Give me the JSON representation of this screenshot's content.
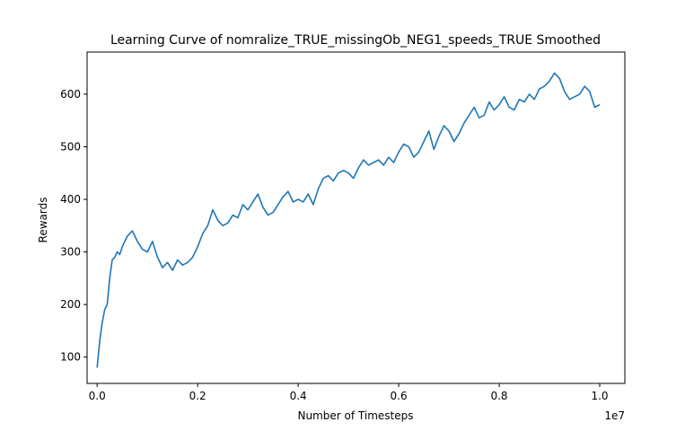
{
  "chart_data": {
    "type": "line",
    "title": "Learning Curve of nomralize_TRUE_missingOb_NEG1_speeds_TRUE Smoothed",
    "xlabel": "Number of Timesteps",
    "ylabel": "Rewards",
    "x_offset_label": "1e7",
    "xlim": [
      -0.02,
      1.05
    ],
    "ylim": [
      50,
      680
    ],
    "xticks": [
      0.0,
      0.2,
      0.4,
      0.6,
      0.8,
      1.0
    ],
    "xtick_labels": [
      "0.0",
      "0.2",
      "0.4",
      "0.6",
      "0.8",
      "1.0"
    ],
    "yticks": [
      100,
      200,
      300,
      400,
      500,
      600
    ],
    "ytick_labels": [
      "100",
      "200",
      "300",
      "400",
      "500",
      "600"
    ],
    "grid": false,
    "legend": false,
    "series": [
      {
        "color": "#1f77b4",
        "x": [
          0.0,
          0.005,
          0.01,
          0.015,
          0.02,
          0.025,
          0.03,
          0.035,
          0.04,
          0.045,
          0.05,
          0.06,
          0.07,
          0.08,
          0.09,
          0.1,
          0.11,
          0.12,
          0.13,
          0.14,
          0.15,
          0.16,
          0.17,
          0.18,
          0.19,
          0.2,
          0.21,
          0.22,
          0.23,
          0.24,
          0.25,
          0.26,
          0.27,
          0.28,
          0.29,
          0.3,
          0.31,
          0.32,
          0.33,
          0.34,
          0.35,
          0.36,
          0.37,
          0.38,
          0.39,
          0.4,
          0.41,
          0.42,
          0.43,
          0.44,
          0.45,
          0.46,
          0.47,
          0.48,
          0.49,
          0.5,
          0.51,
          0.52,
          0.53,
          0.54,
          0.55,
          0.56,
          0.57,
          0.58,
          0.59,
          0.6,
          0.61,
          0.62,
          0.63,
          0.64,
          0.65,
          0.66,
          0.67,
          0.68,
          0.69,
          0.7,
          0.71,
          0.72,
          0.73,
          0.74,
          0.75,
          0.76,
          0.77,
          0.78,
          0.79,
          0.8,
          0.81,
          0.82,
          0.83,
          0.84,
          0.85,
          0.86,
          0.87,
          0.88,
          0.89,
          0.9,
          0.91,
          0.92,
          0.93,
          0.94,
          0.95,
          0.96,
          0.97,
          0.98,
          0.99,
          1.0
        ],
        "y": [
          80,
          130,
          165,
          190,
          200,
          250,
          285,
          290,
          300,
          295,
          310,
          330,
          340,
          320,
          305,
          300,
          320,
          290,
          270,
          280,
          265,
          285,
          275,
          280,
          290,
          310,
          335,
          350,
          380,
          360,
          350,
          355,
          370,
          365,
          390,
          380,
          395,
          410,
          385,
          370,
          375,
          390,
          405,
          415,
          395,
          400,
          395,
          410,
          390,
          420,
          440,
          445,
          435,
          450,
          455,
          450,
          440,
          460,
          475,
          465,
          470,
          475,
          465,
          480,
          470,
          490,
          505,
          500,
          480,
          490,
          510,
          530,
          495,
          520,
          540,
          530,
          510,
          525,
          545,
          560,
          575,
          555,
          560,
          585,
          570,
          580,
          595,
          575,
          570,
          590,
          585,
          600,
          590,
          610,
          615,
          625,
          640,
          630,
          605,
          590,
          595,
          600,
          615,
          605,
          575,
          580
        ]
      }
    ]
  }
}
